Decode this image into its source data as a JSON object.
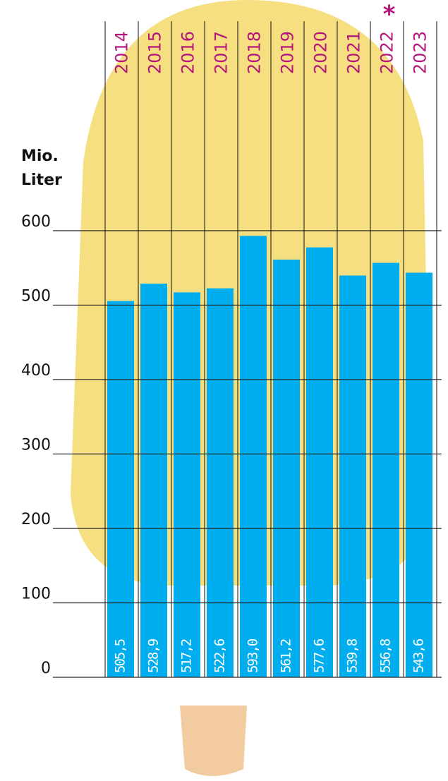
{
  "chart_data": {
    "type": "bar",
    "y_label": "Mio. Liter",
    "categories": [
      "2014",
      "2015",
      "2016",
      "2017",
      "2018",
      "2019",
      "2020",
      "2021",
      "2022",
      "2023"
    ],
    "values": [
      505.5,
      528.9,
      517.2,
      522.6,
      593.0,
      561.2,
      577.6,
      539.8,
      556.8,
      543.6
    ],
    "value_labels": [
      "505,5",
      "528,9",
      "517,2",
      "522,6",
      "593,0",
      "561,2",
      "577,6",
      "539,8",
      "556,8",
      "543,6"
    ],
    "annotations": [
      {
        "category": "2022",
        "text": "*"
      }
    ],
    "color": "#00aeef",
    "category_color": "#b5157a",
    "ylim": [
      0,
      600
    ],
    "yticks": [
      0,
      100,
      200,
      300,
      400,
      500,
      600
    ],
    "grid": true
  }
}
